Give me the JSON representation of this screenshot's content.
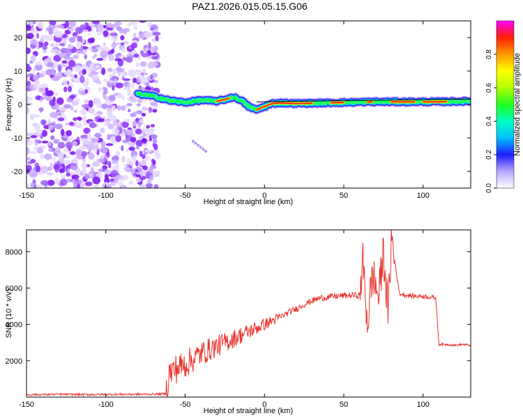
{
  "title": "PAZ1.2026.015.05.15.G06",
  "chart_data": [
    {
      "type": "heatmap",
      "xlabel": "Height of straight line (km)",
      "ylabel": "Frequency (Hz)",
      "xlim": [
        -150,
        130
      ],
      "ylim": [
        -25,
        25
      ],
      "xticks": [
        -150,
        -100,
        -50,
        0,
        50,
        100
      ],
      "yticks": [
        -20,
        -10,
        0,
        10,
        20
      ],
      "colorbar": {
        "label": "Normalized spectral amplitude",
        "range": [
          0,
          1
        ],
        "ticks": [
          0.0,
          0.2,
          0.4,
          0.6,
          0.8
        ]
      },
      "noise_region_x": [
        -150,
        -67
      ],
      "ridge": {
        "x": [
          -80,
          -70,
          -60,
          -50,
          -40,
          -30,
          -25,
          -20,
          -15,
          -10,
          -5,
          0,
          5,
          10,
          20,
          30,
          40,
          50,
          60,
          70,
          80,
          90,
          100,
          110,
          120,
          130
        ],
        "freq": [
          3.2,
          2.5,
          1.2,
          0.6,
          1.3,
          1.0,
          1.5,
          2.2,
          1.4,
          -0.6,
          -1.6,
          -0.6,
          0.3,
          0.5,
          0.3,
          0.4,
          0.5,
          0.6,
          0.7,
          0.8,
          0.8,
          0.8,
          0.8,
          0.8,
          0.9,
          1.0
        ]
      },
      "model_line": {
        "x": [
          -5,
          130
        ],
        "freq": [
          0.8,
          1.6
        ]
      }
    },
    {
      "type": "line",
      "xlabel": "Height of straight line (km)",
      "ylabel": "SNR (10 * v/v)",
      "xlim": [
        -150,
        130
      ],
      "ylim": [
        0,
        9200
      ],
      "xticks": [
        -150,
        -100,
        -50,
        0,
        50,
        100
      ],
      "yticks": [
        2000,
        4000,
        6000,
        8000
      ],
      "series_color": "#e8312c",
      "x": [
        -150,
        -130,
        -110,
        -90,
        -70,
        -62,
        -60,
        -55,
        -50,
        -45,
        -40,
        -35,
        -30,
        -25,
        -20,
        -15,
        -10,
        -5,
        0,
        5,
        10,
        15,
        20,
        25,
        30,
        35,
        40,
        45,
        50,
        55,
        60,
        62,
        65,
        68,
        72,
        75,
        78,
        80,
        85,
        90,
        95,
        100,
        105,
        108,
        110,
        115,
        120,
        125,
        130
      ],
      "y": [
        130,
        150,
        140,
        150,
        160,
        180,
        1300,
        1600,
        1800,
        2100,
        2400,
        2600,
        2800,
        3000,
        3200,
        3400,
        3600,
        3800,
        4000,
        4200,
        4400,
        4650,
        4850,
        5100,
        5300,
        5450,
        5500,
        5550,
        5580,
        5600,
        5600,
        7500,
        4000,
        6800,
        5500,
        8000,
        4500,
        8800,
        5700,
        5600,
        5550,
        5550,
        5500,
        5450,
        2900,
        2900,
        2850,
        2900,
        2850
      ]
    }
  ]
}
